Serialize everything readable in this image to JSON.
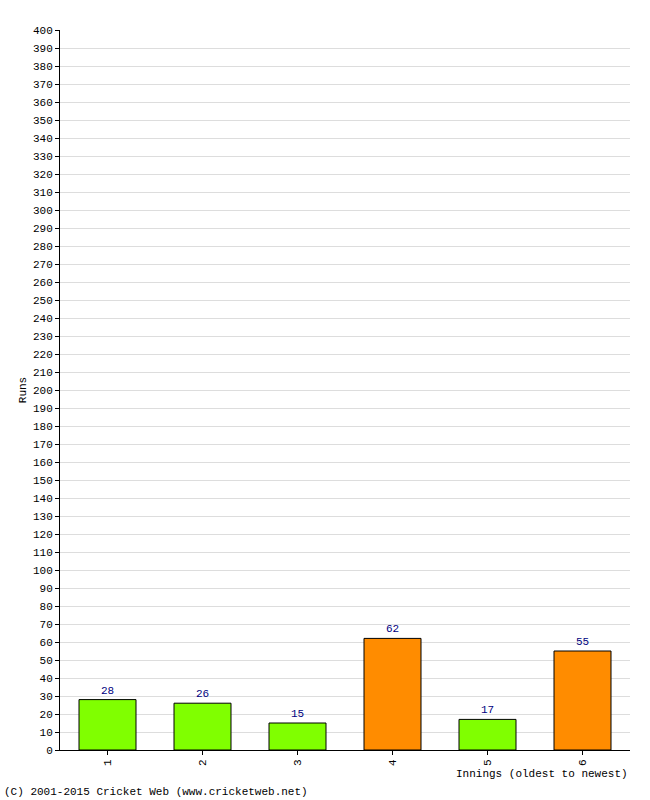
{
  "chart_data": {
    "type": "bar",
    "categories": [
      "1",
      "2",
      "3",
      "4",
      "5",
      "6"
    ],
    "values": [
      28,
      26,
      15,
      62,
      17,
      55
    ],
    "colors": [
      "#80ff00",
      "#80ff00",
      "#80ff00",
      "#ff8c00",
      "#80ff00",
      "#ff8c00"
    ],
    "data_labels": true,
    "grid": true,
    "x_label": "Innings (oldest to newest)",
    "y_label": "Runs",
    "ylim": [
      0,
      400
    ],
    "yticks": [
      0,
      10,
      20,
      30,
      40,
      50,
      60,
      70,
      80,
      90,
      100,
      110,
      120,
      130,
      140,
      150,
      160,
      170,
      180,
      190,
      200,
      210,
      220,
      230,
      240,
      250,
      260,
      270,
      280,
      290,
      300,
      310,
      320,
      330,
      340,
      350,
      360,
      370,
      380,
      390,
      400
    ],
    "annotations": [
      "(C) 2001-2015 Cricket Web (www.cricketweb.net)"
    ]
  }
}
